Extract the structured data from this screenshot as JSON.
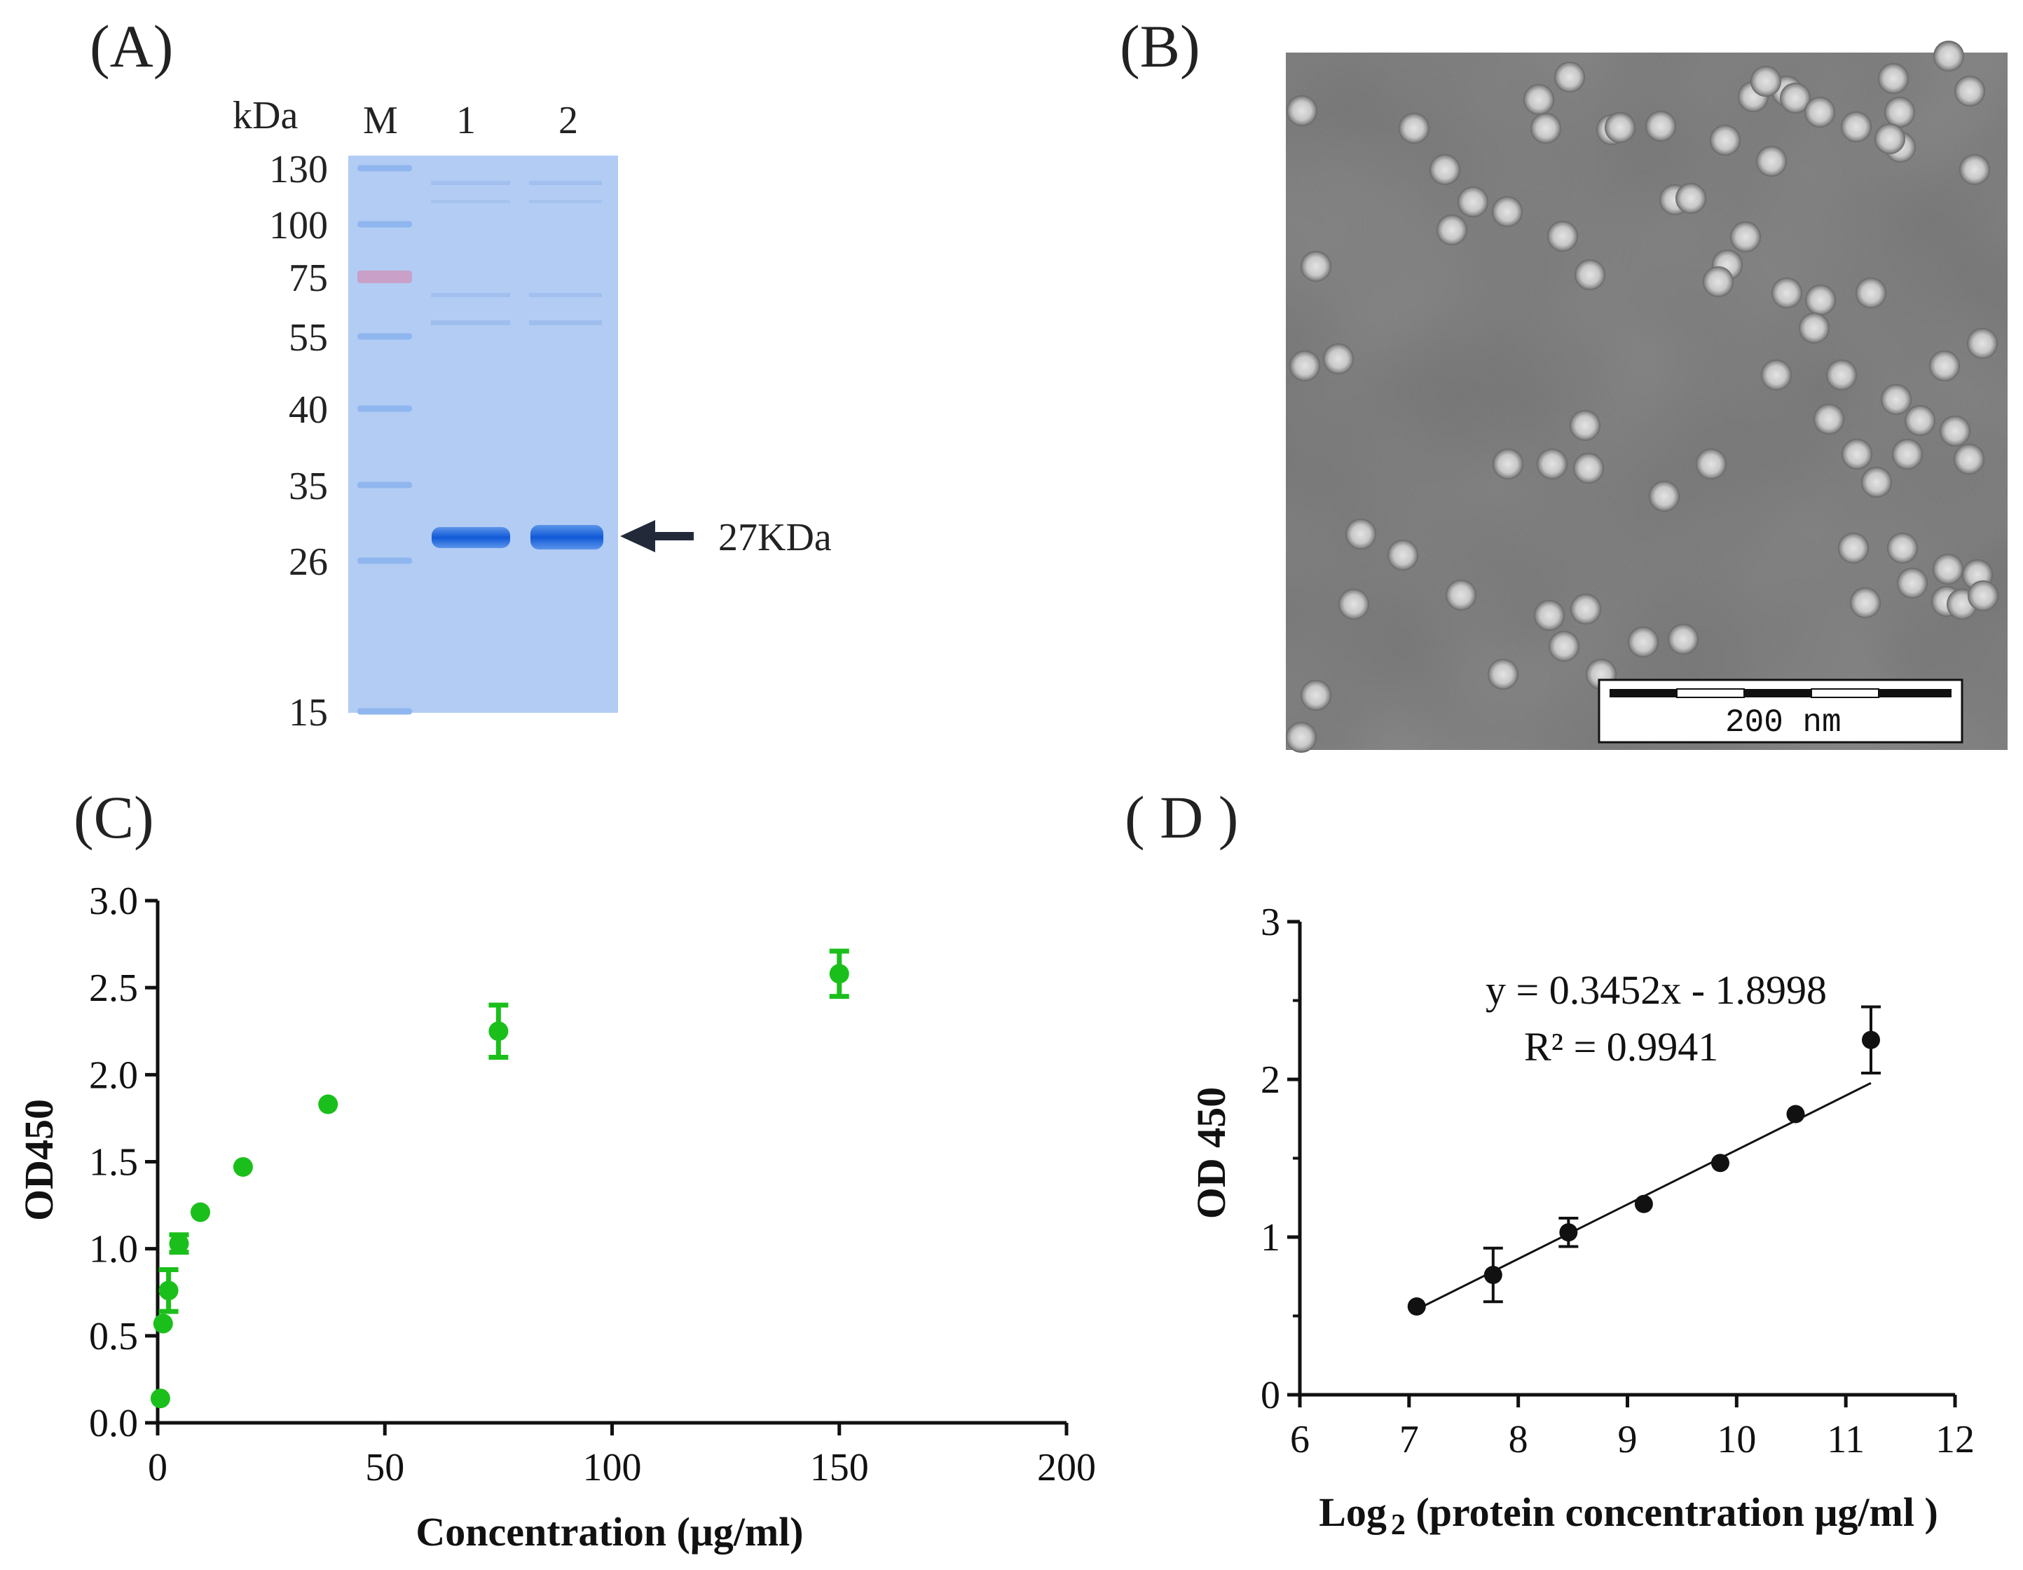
{
  "panels": {
    "a": {
      "label": "(A)"
    },
    "b": {
      "label": "(B)"
    },
    "c": {
      "label": "(C)"
    },
    "d": {
      "label": "( D )"
    }
  },
  "gel": {
    "unit_label": "kDa",
    "lanes": [
      "M",
      "1",
      "2"
    ],
    "markers": [
      130,
      100,
      75,
      55,
      40,
      35,
      26,
      15
    ],
    "band_label": "27KDa",
    "colors": {
      "gel": "#a9c6f3",
      "band": "#1566de",
      "ladder": "#8fb6ee",
      "ladder_75": "#c9a1c8"
    }
  },
  "tem": {
    "scale_bar_label": "200 nm"
  },
  "chart_data": [
    {
      "id": "C",
      "type": "scatter",
      "title": "",
      "xlabel": "Concentration (μg/ml)",
      "ylabel": "OD450",
      "xlim": [
        0,
        200
      ],
      "ylim": [
        0,
        3.0
      ],
      "xticks": [
        0,
        50,
        100,
        150,
        200
      ],
      "yticks": [
        "0.0",
        "0.5",
        "1.0",
        "1.5",
        "2.0",
        "2.5",
        "3.0"
      ],
      "color": "#1bbf1b",
      "points": [
        {
          "x": 0.6,
          "y": 0.14,
          "err": 0.0
        },
        {
          "x": 1.2,
          "y": 0.57,
          "err": 0.0
        },
        {
          "x": 2.4,
          "y": 0.76,
          "err": 0.12
        },
        {
          "x": 4.7,
          "y": 1.03,
          "err": 0.05
        },
        {
          "x": 9.4,
          "y": 1.21,
          "err": 0.0
        },
        {
          "x": 18.8,
          "y": 1.47,
          "err": 0.0
        },
        {
          "x": 37.5,
          "y": 1.83,
          "err": 0.0
        },
        {
          "x": 75,
          "y": 2.25,
          "err": 0.15
        },
        {
          "x": 150,
          "y": 2.58,
          "err": 0.13
        }
      ]
    },
    {
      "id": "D",
      "type": "scatter",
      "title": "",
      "xlabel_main": "Log",
      "xlabel_sub": "2",
      "xlabel_rest": " (protein concentration  μg/ml )",
      "ylabel": "OD 450",
      "xlim": [
        6,
        12
      ],
      "ylim": [
        0,
        3
      ],
      "xticks": [
        "6",
        "7",
        "8",
        "9",
        "10",
        "11",
        "12"
      ],
      "yticks": [
        "0",
        "1",
        "2",
        "3"
      ],
      "color": "#111111",
      "points": [
        {
          "x": 7.07,
          "y": 0.56,
          "err": 0.0
        },
        {
          "x": 7.77,
          "y": 0.76,
          "err": 0.17
        },
        {
          "x": 8.46,
          "y": 1.03,
          "err": 0.09
        },
        {
          "x": 9.15,
          "y": 1.21,
          "err": 0.0
        },
        {
          "x": 9.85,
          "y": 1.47,
          "err": 0.0
        },
        {
          "x": 10.54,
          "y": 1.78,
          "err": 0.0
        },
        {
          "x": 11.23,
          "y": 2.25,
          "err": 0.21
        }
      ],
      "fit": {
        "slope": 0.3452,
        "intercept": -1.8998,
        "x_range": [
          7.07,
          11.23
        ]
      },
      "equation": "y = 0.3452x - 1.8998",
      "r_squared": "R² = 0.9941"
    }
  ]
}
